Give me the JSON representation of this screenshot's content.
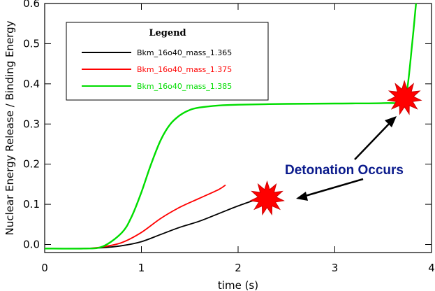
{
  "chart_data": {
    "type": "line",
    "xlabel": "time (s)",
    "ylabel": "Nuclear Energy Release / Binding Energy",
    "xlim": [
      0,
      4
    ],
    "ylim": [
      -0.02,
      0.6
    ],
    "x_ticks": [
      0,
      1,
      2,
      3,
      4
    ],
    "y_ticks": [
      0.0,
      0.1,
      0.2,
      0.3,
      0.4,
      0.5,
      0.6
    ],
    "x_tick_labels": [
      "0",
      "1",
      "2",
      "3",
      "4"
    ],
    "y_tick_labels": [
      "0.0",
      "0.1",
      "0.2",
      "0.3",
      "0.4",
      "0.5",
      "0.6"
    ],
    "grid": false,
    "legend": {
      "title": "Legend",
      "position": "top-left"
    },
    "series": [
      {
        "name": "Bkm_16o40_mass_1.365",
        "color": "#000000",
        "x": [
          0,
          0.4,
          0.6,
          0.8,
          1.0,
          1.2,
          1.4,
          1.6,
          1.8,
          2.0,
          2.2
        ],
        "y": [
          -0.01,
          -0.01,
          -0.008,
          -0.003,
          0.007,
          0.025,
          0.043,
          0.058,
          0.077,
          0.096,
          0.113
        ]
      },
      {
        "name": "Bkm_16o40_mass_1.375",
        "color": "#ff0000",
        "x": [
          0,
          0.4,
          0.6,
          0.8,
          1.0,
          1.2,
          1.4,
          1.6,
          1.8,
          1.87
        ],
        "y": [
          -0.01,
          -0.01,
          -0.006,
          0.005,
          0.03,
          0.065,
          0.093,
          0.115,
          0.137,
          0.148
        ]
      },
      {
        "name": "Bkm_16o40_mass_1.385",
        "color": "#00dd00",
        "x": [
          0,
          0.4,
          0.6,
          0.8,
          0.9,
          1.0,
          1.1,
          1.2,
          1.3,
          1.4,
          1.5,
          1.6,
          1.8,
          2.0,
          2.5,
          3.0,
          3.5,
          3.7,
          3.75,
          3.8,
          3.84
        ],
        "y": [
          -0.01,
          -0.01,
          -0.005,
          0.03,
          0.07,
          0.13,
          0.2,
          0.26,
          0.3,
          0.322,
          0.335,
          0.341,
          0.346,
          0.348,
          0.35,
          0.351,
          0.352,
          0.356,
          0.39,
          0.5,
          0.6
        ]
      }
    ],
    "annotations": [
      {
        "text": "Detonation Occurs"
      }
    ],
    "markers": [
      {
        "type": "star",
        "color": "#ff0000",
        "x": 2.3,
        "y": 0.115
      },
      {
        "type": "star",
        "color": "#ff0000",
        "x": 3.72,
        "y": 0.365
      }
    ]
  }
}
